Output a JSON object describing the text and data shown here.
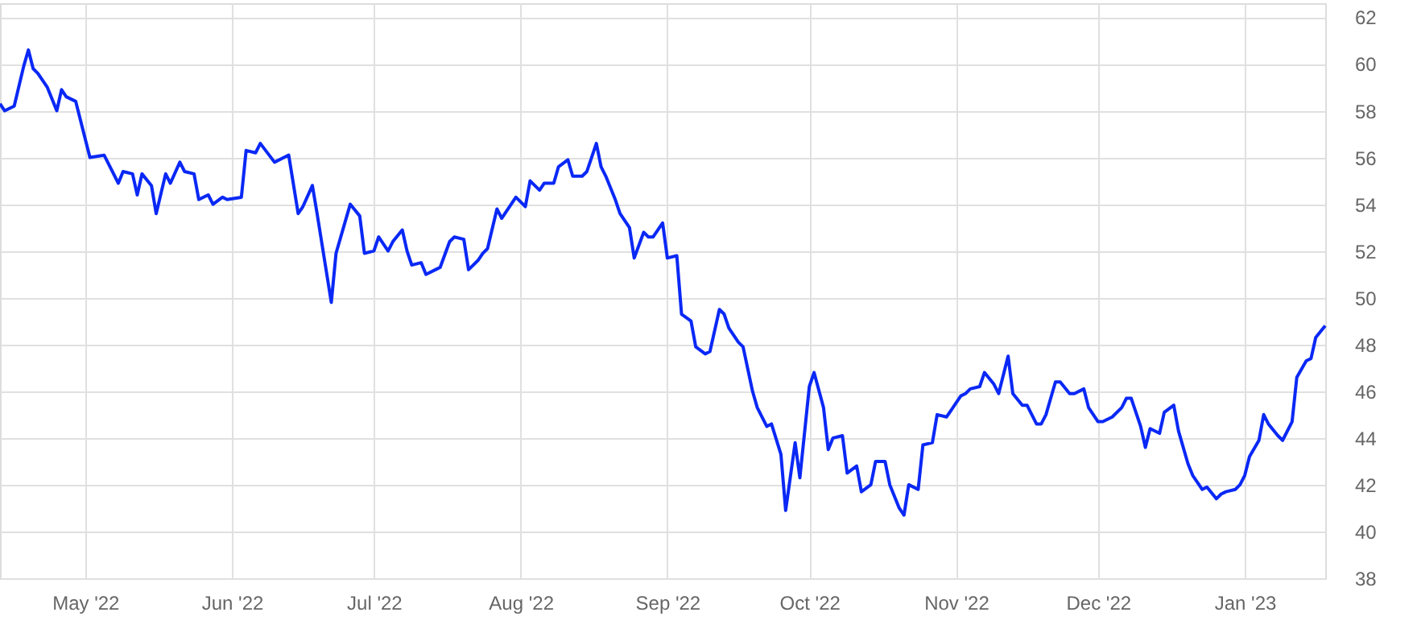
{
  "chart_data": {
    "type": "line",
    "color": "#0a28f5",
    "grid": true,
    "x": [
      "2022-04-13",
      "2022-04-14",
      "2022-04-16",
      "2022-04-18",
      "2022-04-19",
      "2022-04-20",
      "2022-04-21",
      "2022-04-23",
      "2022-04-25",
      "2022-04-26",
      "2022-04-27",
      "2022-04-29",
      "2022-05-02",
      "2022-05-05",
      "2022-05-08",
      "2022-05-09",
      "2022-05-11",
      "2022-05-12",
      "2022-05-13",
      "2022-05-15",
      "2022-05-16",
      "2022-05-18",
      "2022-05-19",
      "2022-05-21",
      "2022-05-22",
      "2022-05-24",
      "2022-05-25",
      "2022-05-27",
      "2022-05-28",
      "2022-05-30",
      "2022-05-31",
      "2022-06-03",
      "2022-06-04",
      "2022-06-06",
      "2022-06-07",
      "2022-06-10",
      "2022-06-12",
      "2022-06-13",
      "2022-06-15",
      "2022-06-16",
      "2022-06-18",
      "2022-06-19",
      "2022-06-22",
      "2022-06-23",
      "2022-06-25",
      "2022-06-26",
      "2022-06-28",
      "2022-06-29",
      "2022-07-01",
      "2022-07-02",
      "2022-07-04",
      "2022-07-05",
      "2022-07-07",
      "2022-07-08",
      "2022-07-09",
      "2022-07-11",
      "2022-07-12",
      "2022-07-14",
      "2022-07-15",
      "2022-07-17",
      "2022-07-18",
      "2022-07-20",
      "2022-07-21",
      "2022-07-23",
      "2022-07-24",
      "2022-07-25",
      "2022-07-27",
      "2022-07-28",
      "2022-07-30",
      "2022-07-31",
      "2022-08-02",
      "2022-08-03",
      "2022-08-05",
      "2022-08-06",
      "2022-08-08",
      "2022-08-09",
      "2022-08-11",
      "2022-08-12",
      "2022-08-14",
      "2022-08-15",
      "2022-08-17",
      "2022-08-18",
      "2022-08-19",
      "2022-08-21",
      "2022-08-22",
      "2022-08-24",
      "2022-08-25",
      "2022-08-27",
      "2022-08-28",
      "2022-08-29",
      "2022-08-31",
      "2022-09-01",
      "2022-09-03",
      "2022-09-04",
      "2022-09-06",
      "2022-09-07",
      "2022-09-09",
      "2022-09-10",
      "2022-09-12",
      "2022-09-13",
      "2022-09-14",
      "2022-09-16",
      "2022-09-17",
      "2022-09-19",
      "2022-09-20",
      "2022-09-22",
      "2022-09-23",
      "2022-09-25",
      "2022-09-26",
      "2022-09-28",
      "2022-09-29",
      "2022-10-01",
      "2022-10-02",
      "2022-10-04",
      "2022-10-05",
      "2022-10-06",
      "2022-10-08",
      "2022-10-09",
      "2022-10-11",
      "2022-10-12",
      "2022-10-14",
      "2022-10-15",
      "2022-10-17",
      "2022-10-18",
      "2022-10-20",
      "2022-10-21",
      "2022-10-22",
      "2022-10-24",
      "2022-10-25",
      "2022-10-27",
      "2022-10-28",
      "2022-10-30",
      "2022-10-31",
      "2022-11-02",
      "2022-11-03",
      "2022-11-04",
      "2022-11-06",
      "2022-11-07",
      "2022-11-09",
      "2022-11-10",
      "2022-11-12",
      "2022-11-13",
      "2022-11-15",
      "2022-11-16",
      "2022-11-18",
      "2022-11-19",
      "2022-11-20",
      "2022-11-22",
      "2022-11-23",
      "2022-11-25",
      "2022-11-26",
      "2022-11-28",
      "2022-11-29",
      "2022-12-01",
      "2022-12-02",
      "2022-12-04",
      "2022-12-06",
      "2022-12-07",
      "2022-12-08",
      "2022-12-10",
      "2022-12-11",
      "2022-12-12",
      "2022-12-14",
      "2022-12-15",
      "2022-12-17",
      "2022-12-18",
      "2022-12-20",
      "2022-12-21",
      "2022-12-23",
      "2022-12-24",
      "2022-12-26",
      "2022-12-27",
      "2022-12-28",
      "2022-12-30",
      "2022-12-31",
      "2023-01-01",
      "2023-01-02",
      "2023-01-04",
      "2023-01-05",
      "2023-01-06",
      "2023-01-08",
      "2023-01-09",
      "2023-01-11",
      "2023-01-12",
      "2023-01-14",
      "2023-01-15",
      "2023-01-16",
      "2023-01-18"
    ],
    "values": [
      58.3,
      58.0,
      58.2,
      59.9,
      60.6,
      59.8,
      59.6,
      59.0,
      58.0,
      58.9,
      58.6,
      58.4,
      56.0,
      56.1,
      54.9,
      55.4,
      55.3,
      54.4,
      55.3,
      54.8,
      53.6,
      55.3,
      54.9,
      55.8,
      55.4,
      55.3,
      54.2,
      54.4,
      54.0,
      54.3,
      54.2,
      54.3,
      56.3,
      56.2,
      56.6,
      55.8,
      56.0,
      56.1,
      53.6,
      53.9,
      54.8,
      53.6,
      49.8,
      51.9,
      53.3,
      54.0,
      53.5,
      51.9,
      52.0,
      52.6,
      52.0,
      52.4,
      52.9,
      52.0,
      51.4,
      51.5,
      51.0,
      51.2,
      51.3,
      52.4,
      52.6,
      52.5,
      51.2,
      51.6,
      51.9,
      52.1,
      53.8,
      53.4,
      54.0,
      54.3,
      53.9,
      55.0,
      54.6,
      54.9,
      54.9,
      55.6,
      55.9,
      55.2,
      55.2,
      55.4,
      56.6,
      55.6,
      55.2,
      54.2,
      53.6,
      53.0,
      51.7,
      52.8,
      52.6,
      52.6,
      53.2,
      51.7,
      51.8,
      49.3,
      49.0,
      47.9,
      47.6,
      47.7,
      49.5,
      49.3,
      48.7,
      48.1,
      47.9,
      46.0,
      45.3,
      44.5,
      44.6,
      43.3,
      40.9,
      43.8,
      42.3,
      46.2,
      46.8,
      45.3,
      43.5,
      44.0,
      44.1,
      42.5,
      42.8,
      41.7,
      42.0,
      43.0,
      43.0,
      42.0,
      41.0,
      40.7,
      42.0,
      41.8,
      43.7,
      43.8,
      45.0,
      44.9,
      45.2,
      45.8,
      45.9,
      46.1,
      46.2,
      46.8,
      46.3,
      45.9,
      47.5,
      45.9,
      45.4,
      45.4,
      44.6,
      44.6,
      45.0,
      46.4,
      46.4,
      45.9,
      45.9,
      46.1,
      45.3,
      44.7,
      44.7,
      44.9,
      45.3,
      45.7,
      45.7,
      44.5,
      43.6,
      44.4,
      44.2,
      45.1,
      45.4,
      44.3,
      42.9,
      42.4,
      41.8,
      41.9,
      41.4,
      41.6,
      41.7,
      41.8,
      42.0,
      42.4,
      43.2,
      43.9,
      45.0,
      44.6,
      44.1,
      43.9,
      44.7,
      46.6,
      47.3,
      47.4,
      48.3,
      48.8
    ],
    "xlim": [
      "2022-04-13",
      "2023-01-18"
    ],
    "xticks": [
      {
        "value": "2022-05-01",
        "label": "May '22"
      },
      {
        "value": "2022-06-01",
        "label": "Jun '22"
      },
      {
        "value": "2022-07-01",
        "label": "Jul '22"
      },
      {
        "value": "2022-08-01",
        "label": "Aug '22"
      },
      {
        "value": "2022-09-01",
        "label": "Sep '22"
      },
      {
        "value": "2022-10-01",
        "label": "Oct '22"
      },
      {
        "value": "2022-11-01",
        "label": "Nov '22"
      },
      {
        "value": "2022-12-01",
        "label": "Dec '22"
      },
      {
        "value": "2023-01-01",
        "label": "Jan '23"
      }
    ],
    "ylim": [
      38,
      62.6
    ],
    "yticks": [
      38,
      40,
      42,
      44,
      46,
      48,
      50,
      52,
      54,
      56,
      58,
      60,
      62
    ]
  }
}
